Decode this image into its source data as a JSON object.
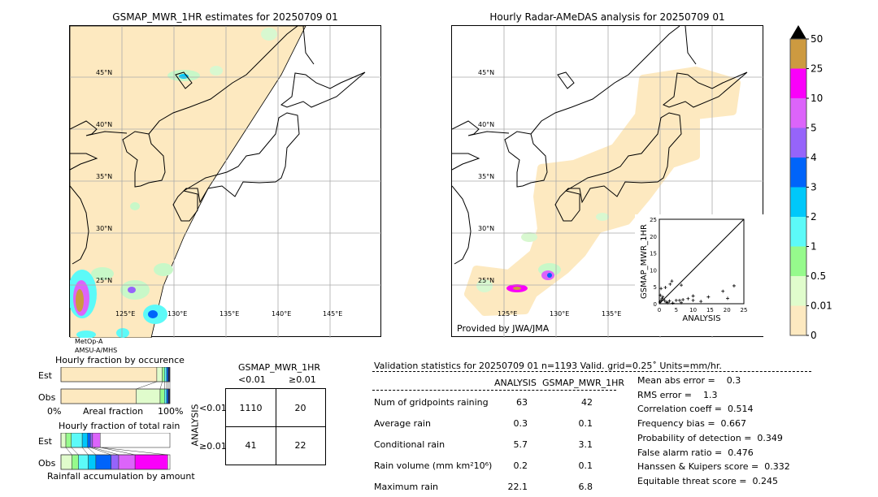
{
  "left_map": {
    "title": "GSMAP_MWR_1HR estimates for 20250709 01",
    "sensor_line1": "MetOp-A",
    "sensor_line2": "AMSU-A/MHS",
    "lat_labels": [
      "45°N",
      "40°N",
      "35°N",
      "30°N",
      "25°N"
    ],
    "lon_labels": [
      "125°E",
      "130°E",
      "135°E",
      "140°E",
      "145°E"
    ]
  },
  "right_map": {
    "title": "Hourly Radar-AMeDAS analysis for 20250709 01",
    "credit": "Provided by JWA/JMA",
    "lat_labels": [
      "45°N",
      "40°N",
      "35°N",
      "30°N",
      "25°N"
    ],
    "lon_labels": [
      "125°E",
      "130°E",
      "135°E"
    ]
  },
  "colorbar": {
    "ticks": [
      "0",
      "0.01",
      "0.5",
      "1",
      "2",
      "3",
      "4",
      "5",
      "10",
      "25",
      "50"
    ],
    "colors": [
      "#fde9c0",
      "#e0fccc",
      "#96fa8c",
      "#5cfaf8",
      "#00c8fa",
      "#0064fa",
      "#9664fa",
      "#dc64fa",
      "#fa00fa",
      "#cd9a40"
    ],
    "extend_color": "#000000"
  },
  "chart_data": [
    {
      "type": "scatter",
      "xlabel": "ANALYSIS",
      "ylabel": "GSMAP_MWR_1HR",
      "xlim": [
        0,
        25
      ],
      "ylim": [
        0,
        25
      ],
      "xticks": [
        "0",
        "5",
        "10",
        "15",
        "20",
        "25"
      ],
      "yticks": [
        "0",
        "5",
        "10",
        "15",
        "20",
        "25"
      ],
      "points": [
        [
          0.2,
          0.5
        ],
        [
          0.5,
          1
        ],
        [
          1,
          2
        ],
        [
          0.3,
          2.5
        ],
        [
          0.8,
          1.5
        ],
        [
          1.5,
          1
        ],
        [
          2,
          0.5
        ],
        [
          0.5,
          4.5
        ],
        [
          1.8,
          4.8
        ],
        [
          3.2,
          5.8
        ],
        [
          3.7,
          6.7
        ],
        [
          6.5,
          5.5
        ],
        [
          5,
          1
        ],
        [
          6,
          1
        ],
        [
          7,
          1.2
        ],
        [
          6.5,
          0.3
        ],
        [
          8.5,
          1.5
        ],
        [
          10,
          2.3
        ],
        [
          10,
          1
        ],
        [
          12.3,
          0.7
        ],
        [
          14.5,
          2
        ],
        [
          18.8,
          3.7
        ],
        [
          20.2,
          1.6
        ],
        [
          22.1,
          5.3
        ],
        [
          2.5,
          0.3
        ],
        [
          3,
          0.8
        ],
        [
          4,
          0.2
        ]
      ],
      "diagonal": true
    },
    {
      "type": "bar",
      "title": "Hourly fraction by occurence",
      "xlabel": "Areal fraction",
      "x_left": "0%",
      "x_right": "100%",
      "series": [
        {
          "name": "Est",
          "fractions": [
            0.88,
            0.05,
            0.02,
            0.02,
            0.015,
            0.015
          ]
        },
        {
          "name": "Obs",
          "fractions": [
            0.69,
            0.22,
            0.04,
            0.02,
            0.015,
            0.015
          ]
        }
      ]
    },
    {
      "type": "bar",
      "title": "Hourly fraction of total rain",
      "xlabel": "Rainfall accumulation by amount",
      "series": [
        {
          "name": "Est",
          "fractions": [
            0.045,
            0.05,
            0.1,
            0.05,
            0.025,
            0.02,
            0.07,
            0
          ]
        },
        {
          "name": "Obs",
          "fractions": [
            0.1,
            0.06,
            0.09,
            0.07,
            0.14,
            0.07,
            0.15,
            0.3
          ]
        }
      ]
    }
  ],
  "contingency": {
    "title": "GSMAP_MWR_1HR",
    "col1": "<0.01",
    "col2": "≥0.01",
    "row_axis": "ANALYSIS",
    "row1": "<0.01",
    "row2": "≥0.01",
    "cells": [
      [
        "1110",
        "20"
      ],
      [
        "41",
        "22"
      ]
    ]
  },
  "validation": {
    "header": "Validation statistics for 20250709 01  n=1193 Valid. grid=0.25˚ Units=mm/hr.",
    "col_analysis": "ANALYSIS",
    "col_gsmap": "GSMAP_MWR_1HR",
    "rows": [
      {
        "label": "Num of gridpoints raining",
        "a": "63",
        "g": "42"
      },
      {
        "label": "Average rain",
        "a": "0.3",
        "g": "0.1"
      },
      {
        "label": "Conditional rain",
        "a": "5.7",
        "g": "3.1"
      },
      {
        "label": "Rain volume (mm km²10⁶)",
        "a": "0.2",
        "g": "0.1"
      },
      {
        "label": "Maximum rain",
        "a": "22.1",
        "g": "6.8"
      }
    ],
    "scores": [
      "Mean abs error =    0.3",
      "RMS error =    1.3",
      "Correlation coeff =  0.514",
      "Frequency bias =  0.667",
      "Probability of detection =  0.349",
      "False alarm ratio =  0.476",
      "Hanssen & Kuipers score =  0.332",
      "Equitable threat score =  0.245"
    ]
  }
}
